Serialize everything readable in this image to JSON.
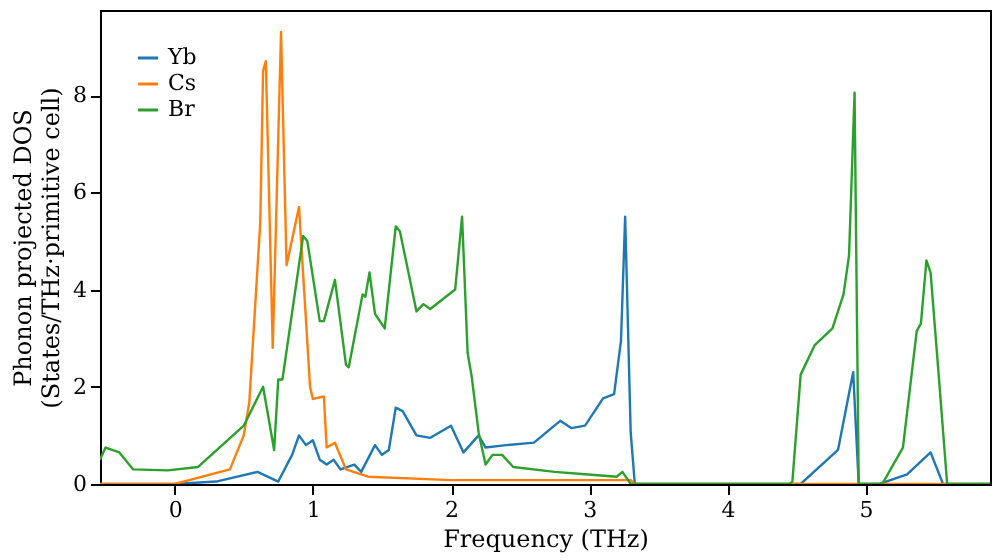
{
  "chart_data": {
    "type": "line",
    "xlabel": "Frequency (THz)",
    "ylabel": "Phonon projected DOS\n(States/THz·primitive cell)",
    "xlim": [
      -0.54,
      5.9
    ],
    "ylim": [
      0,
      9.75
    ],
    "xticks": [
      0,
      1,
      2,
      3,
      4,
      5
    ],
    "yticks": [
      0,
      2,
      4,
      6,
      8
    ],
    "grid": false,
    "legend": "top left",
    "line_style": "solid",
    "marker": "none",
    "series": [
      {
        "name": "Yb",
        "color": "#1f77b4",
        "x": [
          -0.54,
          0.0,
          0.3,
          0.6,
          0.75,
          0.85,
          0.9,
          0.95,
          1.0,
          1.05,
          1.1,
          1.15,
          1.2,
          1.3,
          1.35,
          1.45,
          1.5,
          1.55,
          1.6,
          1.65,
          1.75,
          1.85,
          2.0,
          2.09,
          2.2,
          2.25,
          2.4,
          2.6,
          2.79,
          2.87,
          2.97,
          3.1,
          3.18,
          3.23,
          3.26,
          3.3,
          3.33,
          4.53,
          4.8,
          4.91,
          4.95,
          5.1,
          5.3,
          5.47,
          5.56,
          5.9
        ],
        "values": [
          0,
          0,
          0.05,
          0.25,
          0.05,
          0.6,
          1.0,
          0.8,
          0.9,
          0.5,
          0.4,
          0.5,
          0.3,
          0.4,
          0.25,
          0.8,
          0.6,
          0.7,
          1.57,
          1.5,
          1.0,
          0.95,
          1.2,
          0.65,
          1.0,
          0.75,
          0.8,
          0.85,
          1.3,
          1.15,
          1.2,
          1.76,
          1.85,
          2.95,
          5.5,
          1.06,
          0,
          0,
          0.7,
          2.3,
          0,
          0,
          0.2,
          0.65,
          0,
          0
        ]
      },
      {
        "name": "Cs",
        "color": "#ff7f0e",
        "x": [
          -0.54,
          0.0,
          0.4,
          0.5,
          0.54,
          0.62,
          0.64,
          0.66,
          0.71,
          0.77,
          0.81,
          0.9,
          0.98,
          1.0,
          1.08,
          1.1,
          1.16,
          1.24,
          1.4,
          2.0,
          3.3,
          3.33,
          5.9
        ],
        "values": [
          0,
          0,
          0.3,
          1.0,
          1.67,
          5.4,
          8.5,
          8.7,
          2.8,
          9.3,
          4.5,
          5.7,
          2.0,
          1.75,
          1.8,
          0.75,
          0.85,
          0.3,
          0.15,
          0.08,
          0.08,
          0,
          0
        ]
      },
      {
        "name": "Br",
        "color": "#2ca02c",
        "x": [
          -0.54,
          -0.5,
          -0.4,
          -0.3,
          -0.05,
          0.17,
          0.5,
          0.64,
          0.72,
          0.75,
          0.78,
          0.93,
          0.96,
          1.05,
          1.08,
          1.16,
          1.24,
          1.26,
          1.36,
          1.38,
          1.41,
          1.45,
          1.52,
          1.6,
          1.63,
          1.75,
          1.8,
          1.85,
          2.03,
          2.08,
          2.12,
          2.15,
          2.2,
          2.25,
          2.3,
          2.37,
          2.45,
          2.75,
          2.97,
          3.2,
          3.24,
          3.3,
          4.45,
          4.47,
          4.53,
          4.63,
          4.76,
          4.84,
          4.88,
          4.92,
          4.95,
          5.03,
          5.12,
          5.27,
          5.37,
          5.4,
          5.44,
          5.47,
          5.53,
          5.59,
          5.9
        ],
        "values": [
          0.5,
          0.75,
          0.65,
          0.3,
          0.28,
          0.35,
          1.2,
          2.0,
          0.7,
          2.15,
          2.15,
          5.1,
          5.0,
          3.35,
          3.35,
          4.2,
          2.45,
          2.4,
          3.9,
          3.85,
          4.35,
          3.5,
          3.2,
          5.3,
          5.2,
          3.55,
          3.7,
          3.6,
          4.0,
          5.5,
          2.7,
          2.2,
          1.05,
          0.4,
          0.6,
          0.6,
          0.35,
          0.25,
          0.2,
          0.15,
          0.25,
          0,
          0,
          0.05,
          2.25,
          2.85,
          3.2,
          3.9,
          4.7,
          8.05,
          0,
          0,
          0,
          0.75,
          3.15,
          3.3,
          4.6,
          4.35,
          2.2,
          0,
          0
        ]
      }
    ]
  }
}
